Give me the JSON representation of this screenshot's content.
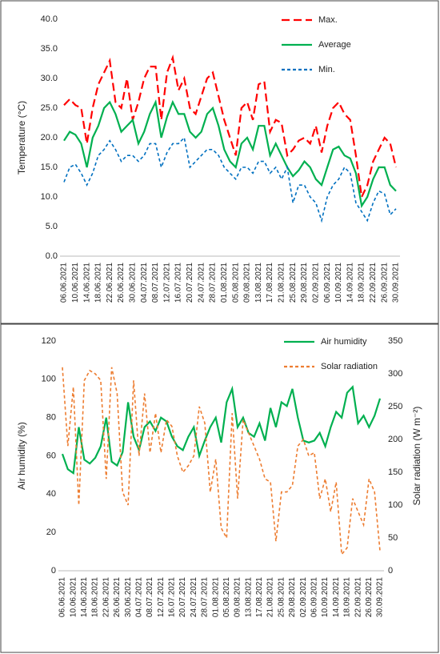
{
  "chart_data": [
    {
      "type": "line",
      "ylabel": "Temperature (°C)",
      "ylim": [
        0,
        40
      ],
      "yticks": [
        {
          "value": 0,
          "label": "0.0"
        },
        {
          "value": 5,
          "label": "5.0"
        },
        {
          "value": 10,
          "label": "10.0"
        },
        {
          "value": 15,
          "label": "15.0"
        },
        {
          "value": 20,
          "label": "20.0"
        },
        {
          "value": 25,
          "label": "25.0"
        },
        {
          "value": 30,
          "label": "30.0"
        },
        {
          "value": 35,
          "label": "35.0"
        },
        {
          "value": 40,
          "label": "40.0"
        }
      ],
      "legend": "top-right",
      "categories": [
        "06.06.2021",
        null,
        "10.06.2021",
        null,
        "14.06.2021",
        null,
        "18.06.2021",
        null,
        "22.06.2021",
        null,
        "26.06.2021",
        null,
        "30.06.2021",
        null,
        "04.07.2021",
        null,
        "08.07.2021",
        null,
        "12.07.2021",
        null,
        "16.07.2021",
        null,
        "20.07.2021",
        null,
        "24.07.2021",
        null,
        "28.07.2021",
        null,
        "01.08.2021",
        null,
        "05.08.2021",
        null,
        "09.08.2021",
        null,
        "13.08.2021",
        null,
        "17.08.2021",
        null,
        "21.08.2021",
        null,
        "25.08.2021",
        null,
        "29.08.2021",
        null,
        "02.09.2021",
        null,
        "06.09.2021",
        null,
        "10.09.2021",
        null,
        "14.09.2021",
        null,
        "18.09.2021",
        null,
        "22.09.2021",
        null,
        "26.09.2021",
        null,
        "30.09.2021"
      ],
      "series": [
        {
          "name": "Max.",
          "color": "#ff0000",
          "dash": "long",
          "values": [
            25.5,
            26.5,
            25.5,
            25,
            19,
            25,
            29,
            31,
            33,
            26,
            25,
            30,
            23,
            26,
            30,
            32,
            32,
            23,
            31,
            33.5,
            28,
            30,
            25,
            24,
            27,
            30,
            31,
            27,
            23,
            20,
            17,
            25,
            26,
            23,
            29,
            29.5,
            21,
            23,
            22.5,
            17,
            18,
            19.5,
            20,
            19,
            22,
            17.5,
            22,
            25,
            26,
            24,
            23,
            17,
            10,
            12,
            16,
            18,
            20,
            19,
            15
          ]
        },
        {
          "name": "Average",
          "color": "#00b050",
          "dash": "solid",
          "values": [
            19.5,
            21,
            20.5,
            19,
            15,
            20,
            22,
            25,
            26,
            24,
            21,
            22,
            23,
            19,
            21,
            24,
            26,
            20,
            23.5,
            26,
            24,
            24,
            21,
            20,
            21,
            24,
            25,
            22,
            18,
            16,
            15,
            19,
            20,
            18,
            22,
            22,
            17,
            19,
            17,
            15,
            13.5,
            14.5,
            16,
            15,
            13,
            12,
            15,
            18,
            18.5,
            17,
            16.5,
            14,
            8.5,
            10,
            13,
            15,
            15,
            12,
            11
          ]
        },
        {
          "name": "Min.",
          "color": "#0070c0",
          "dash": "short",
          "values": [
            12.5,
            15,
            15.5,
            14,
            12,
            14,
            17,
            18,
            19.5,
            18,
            16,
            17,
            17,
            16,
            17,
            19,
            19,
            15,
            17.5,
            19,
            19,
            20,
            15,
            16,
            17,
            18,
            18,
            17,
            15,
            14,
            13,
            15,
            15,
            14,
            16,
            16,
            14,
            15,
            13,
            15,
            9,
            12,
            12,
            10,
            9,
            6,
            10,
            12,
            13,
            15,
            14,
            9,
            7.5,
            6,
            9,
            11,
            10.5,
            7,
            8
          ]
        }
      ]
    },
    {
      "type": "line",
      "ylabel": "Air humidity (%)",
      "y2label": "Solar radiation (W m⁻²)",
      "ylim": [
        0,
        120
      ],
      "yticks": [
        0,
        20,
        40,
        60,
        80,
        100,
        120
      ],
      "y2lim": [
        0,
        350
      ],
      "y2ticks": [
        0,
        50,
        100,
        150,
        200,
        250,
        300,
        350
      ],
      "legend": "top-right",
      "categories": [
        "06.06.2021",
        null,
        "10.06.2021",
        null,
        "14.06.2021",
        null,
        "18.06.2021",
        null,
        "22.06.2021",
        null,
        "26.06.2021",
        null,
        "30.06.2021",
        null,
        "04.07.2021",
        null,
        "08.07.2021",
        null,
        "12.07.2021",
        null,
        "16.07.2021",
        null,
        "20.07.2021",
        null,
        "24.07.2021",
        null,
        "28.07.2021",
        null,
        "01.08.2021",
        null,
        "05.08.2021",
        null,
        "09.08.2021",
        null,
        "13.08.2021",
        null,
        "17.08.2021",
        null,
        "21.08.2021",
        null,
        "25.08.2021",
        null,
        "29.08.2021",
        null,
        "02.09.2021",
        null,
        "06.09.2021",
        null,
        "10.09.2021",
        null,
        "14.09.2021",
        null,
        "18.09.2021",
        null,
        "22.09.2021",
        null,
        "26.09.2021",
        null,
        "30.09.2021"
      ],
      "series": [
        {
          "name": "Air humidity",
          "color": "#00b050",
          "dash": "solid",
          "values": [
            61,
            53,
            51,
            75,
            58,
            56,
            59,
            65,
            80,
            57,
            55,
            62,
            88,
            70,
            63,
            75,
            78,
            73,
            80,
            78,
            70,
            65,
            63,
            70,
            75,
            60,
            68,
            75,
            80,
            67,
            88,
            95,
            75,
            80,
            72,
            70,
            77,
            68,
            85,
            75,
            88,
            86,
            95,
            80,
            68,
            67,
            68,
            72,
            65,
            75,
            83,
            80,
            93,
            96,
            77,
            81,
            75,
            81,
            90
          ]
        },
        {
          "name": "Solar radiation",
          "color": "#ed7d31",
          "dash": "short",
          "axis": "y2",
          "values": [
            310,
            190,
            280,
            100,
            290,
            305,
            300,
            290,
            140,
            310,
            270,
            120,
            100,
            290,
            175,
            270,
            180,
            240,
            180,
            230,
            220,
            175,
            150,
            160,
            175,
            250,
            225,
            120,
            170,
            65,
            50,
            240,
            110,
            230,
            210,
            190,
            170,
            140,
            135,
            45,
            120,
            120,
            130,
            190,
            200,
            175,
            180,
            110,
            140,
            90,
            135,
            25,
            35,
            110,
            90,
            70,
            140,
            120,
            30
          ]
        }
      ]
    }
  ]
}
